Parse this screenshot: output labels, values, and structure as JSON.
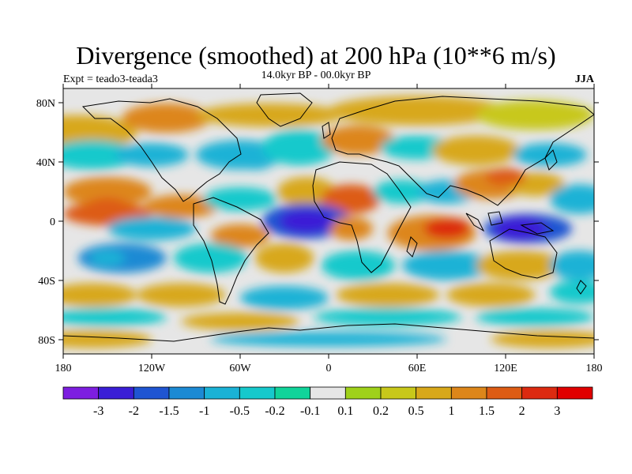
{
  "title": "Divergence (smoothed) at 200 hPa (10**6 m/s)",
  "experiment_label": "Expt = teado3-teada3",
  "time_label": "14.0kyr BP - 00.0kyr BP",
  "season_label": "JJA",
  "chart_data": {
    "type": "heatmap",
    "projection": "cylindrical-equidistant",
    "x_ticks": [
      "180",
      "120W",
      "60W",
      "0",
      "60E",
      "120E",
      "180"
    ],
    "y_ticks": [
      "80N",
      "40N",
      "0",
      "40S",
      "80S"
    ],
    "colorbar": {
      "levels": [
        "-3",
        "-2",
        "-1.5",
        "-1",
        "-0.5",
        "-0.2",
        "-0.1",
        "0.1",
        "0.2",
        "0.5",
        "1",
        "1.5",
        "2",
        "3"
      ],
      "colors": [
        "#7d1ee0",
        "#3a1ed6",
        "#1f55d2",
        "#1c8ad4",
        "#1ab2d6",
        "#16c9cc",
        "#10d49a",
        "#e6e6e6",
        "#9fd11a",
        "#c8c81a",
        "#d8a81a",
        "#dd861a",
        "#dd5c14",
        "#dc2a10",
        "#e00000"
      ]
    },
    "features": [
      {
        "name": "Strong convergence over tropical Atlantic / Gulf of Guinea",
        "lon": -15,
        "lat": 0,
        "sign": "negative",
        "magnitude": 3
      },
      {
        "name": "Convergence over Maritime Continent / West Pacific",
        "lon": 130,
        "lat": -5,
        "sign": "negative",
        "magnitude": 3
      },
      {
        "name": "Divergence over tropical Indian Ocean",
        "lon": 80,
        "lat": -5,
        "sign": "positive",
        "magnitude": 2
      },
      {
        "name": "Divergence over tropical East Pacific",
        "lon": -150,
        "lat": 10,
        "sign": "positive",
        "magnitude": 1.5
      },
      {
        "name": "Divergence over West Africa / Sahel",
        "lon": 10,
        "lat": 15,
        "sign": "positive",
        "magnitude": 1.5
      },
      {
        "name": "Divergence over East Asia",
        "lon": 120,
        "lat": 30,
        "sign": "positive",
        "magnitude": 1.5
      },
      {
        "name": "Convergence over North Atlantic",
        "lon": -50,
        "lat": 40,
        "sign": "negative",
        "magnitude": 1
      },
      {
        "name": "Convergence over South Pacific",
        "lon": -150,
        "lat": -25,
        "sign": "negative",
        "magnitude": 1
      }
    ]
  }
}
